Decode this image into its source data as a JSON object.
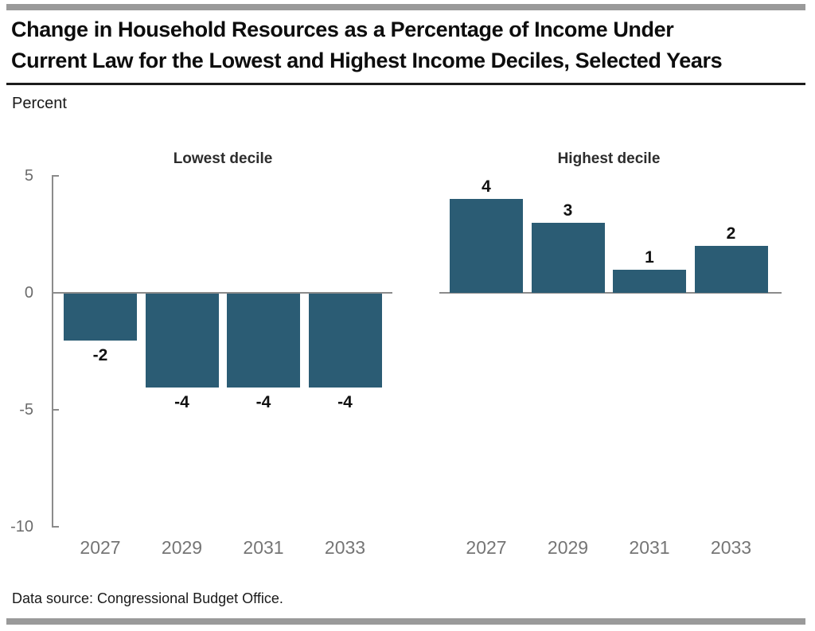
{
  "header": {
    "title_lines": [
      "Change in Household Resources as a Percentage of Income Under",
      "Current Law for the Lowest and Highest Income Deciles, Selected Years"
    ],
    "unit_label": "Percent"
  },
  "footer": {
    "source_note": "Data source: Congressional Budget Office."
  },
  "chart_data": {
    "type": "bar",
    "title": "Change in Household Resources as a Percentage of Income Under Current Law for the Lowest and Highest Income Deciles, Selected Years",
    "categories": [
      "2027",
      "2029",
      "2031",
      "2033"
    ],
    "series": [
      {
        "name": "Lowest decile",
        "values": [
          -2,
          -4,
          -4,
          -4
        ]
      },
      {
        "name": "Highest decile",
        "values": [
          4,
          3,
          1,
          2
        ]
      }
    ],
    "xlabel": "",
    "ylabel": "Percent",
    "ylim": [
      -10,
      5
    ],
    "yticks": [
      5,
      0,
      -5,
      -10
    ],
    "grid": false,
    "legend_position": "none",
    "data_labels": true,
    "layout": "two side-by-side panels sharing one y axis",
    "bar_color": "#2b5c74",
    "axis_color": "#8b8b8b"
  }
}
